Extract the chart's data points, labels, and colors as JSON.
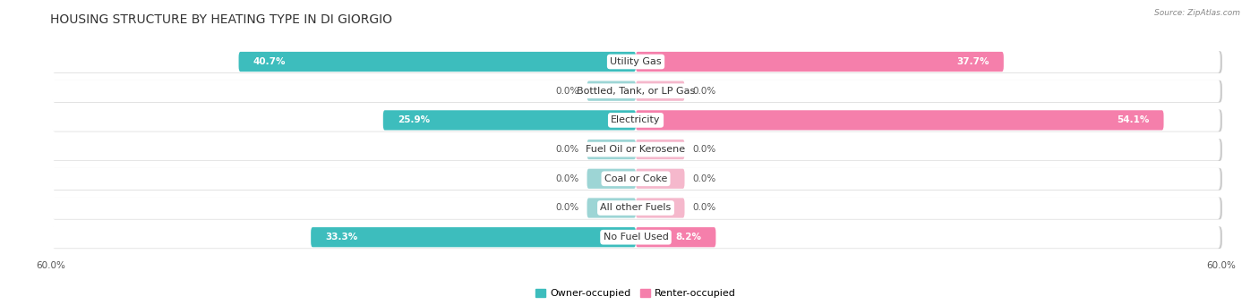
{
  "title": "HOUSING STRUCTURE BY HEATING TYPE IN DI GIORGIO",
  "source": "Source: ZipAtlas.com",
  "categories": [
    "Utility Gas",
    "Bottled, Tank, or LP Gas",
    "Electricity",
    "Fuel Oil or Kerosene",
    "Coal or Coke",
    "All other Fuels",
    "No Fuel Used"
  ],
  "owner_values": [
    40.7,
    0.0,
    25.9,
    0.0,
    0.0,
    0.0,
    33.3
  ],
  "renter_values": [
    37.7,
    0.0,
    54.1,
    0.0,
    0.0,
    0.0,
    8.2
  ],
  "owner_color": "#3dbdbd",
  "renter_color": "#f57fab",
  "owner_color_light": "#9dd5d5",
  "renter_color_light": "#f5b8cc",
  "zero_bar_size": 5.0,
  "title_fontsize": 10,
  "label_fontsize": 8,
  "value_fontsize": 7.5,
  "axis_label_fontsize": 7.5,
  "legend_fontsize": 8,
  "x_min": -60.0,
  "x_max": 60.0
}
